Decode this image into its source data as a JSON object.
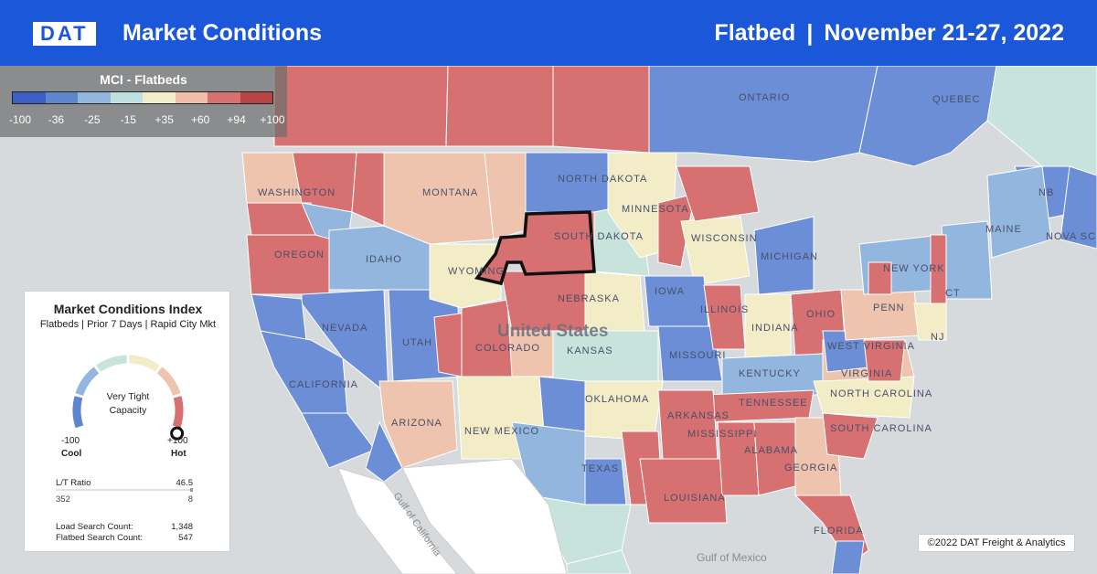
{
  "header": {
    "logo": "DAT",
    "title": "Market Conditions",
    "equipment": "Flatbed",
    "separator": "|",
    "date_range": "November 21-27, 2022"
  },
  "legend": {
    "title": "MCI - Flatbeds",
    "colors": [
      "#3d5fc4",
      "#5f85cf",
      "#93b6de",
      "#bfe0de",
      "#f2edc7",
      "#eebea8",
      "#d77070",
      "#b74444"
    ],
    "ticks": [
      "-100",
      "-36",
      "-25",
      "-15",
      "+35",
      "+60",
      "+94",
      "+100"
    ]
  },
  "panel": {
    "title": "Market Conditions Index",
    "subtitle": "Flatbeds | Prior 7 Days | Rapid City Mkt",
    "gauge_status_line1": "Very Tight",
    "gauge_status_line2": "Capacity",
    "gauge_value": 100,
    "min_value": "-100",
    "min_label": "Cool",
    "max_value": "+100",
    "max_label": "Hot",
    "lt_ratio_label": "L/T Ratio",
    "lt_ratio_value": "46.5",
    "loads": "352",
    "trucks": "8",
    "load_search_label": "Load Search Count:",
    "load_search_value": "1,348",
    "flatbed_search_label": "Flatbed Search Count:",
    "flatbed_search_value": "547"
  },
  "map": {
    "country_label": "United States",
    "states": [
      "WASHINGTON",
      "OREGON",
      "CALIFORNIA",
      "NEVADA",
      "IDAHO",
      "MONTANA",
      "WYOMING",
      "UTAH",
      "ARIZONA",
      "COLORADO",
      "NEW MEXICO",
      "NORTH DAKOTA",
      "SOUTH DAKOTA",
      "NEBRASKA",
      "KANSAS",
      "OKLAHOMA",
      "TEXAS",
      "MINNESOTA",
      "IOWA",
      "MISSOURI",
      "ARKANSAS",
      "LOUISIANA",
      "WISCONSIN",
      "ILLINOIS",
      "MICHIGAN",
      "INDIANA",
      "OHIO",
      "KENTUCKY",
      "TENNESSEE",
      "MISSISSIPPI",
      "ALABAMA",
      "GEORGIA",
      "FLORIDA",
      "SOUTH CAROLINA",
      "NORTH CAROLINA",
      "VIRGINIA",
      "WEST VIRGINIA",
      "PENN",
      "NEW YORK",
      "NJ",
      "MAINE",
      "CT",
      "ONTARIO",
      "QUEBEC",
      "NB",
      "NOVA SC"
    ],
    "water": [
      "Gulf of California",
      "Gulf of Mexico"
    ],
    "selected_market": "Rapid City"
  },
  "copyright": "©2022 DAT Freight & Analytics"
}
